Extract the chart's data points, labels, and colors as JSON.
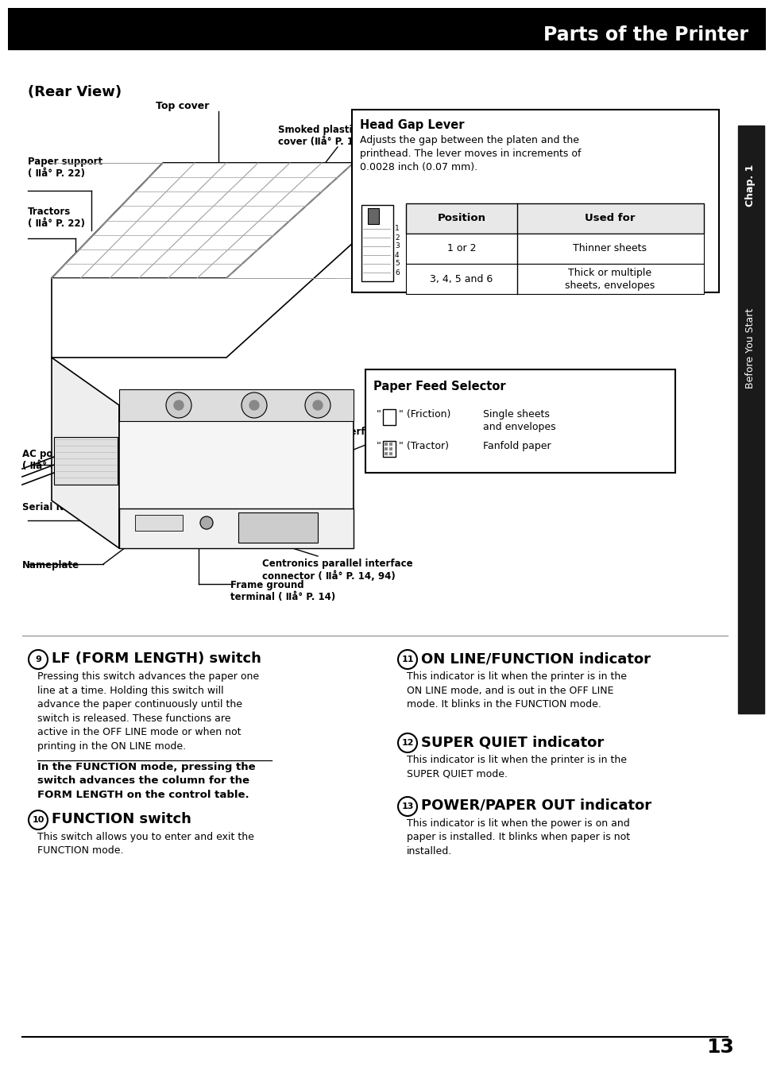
{
  "title": "Parts of the Printer",
  "header_bg": "#000000",
  "header_text_color": "#ffffff",
  "page_bg": "#ffffff",
  "page_number": "13",
  "rear_view_label": "(Rear View)",
  "sidebar_text": "Chap. 1",
  "sidebar_sub": "Before You Start",
  "head_gap_lever_title": "Head Gap Lever",
  "head_gap_lever_desc": "Adjusts the gap between the platen and the\nprinthead. The lever moves in increments of\n0.0028 inch (0.07 mm).",
  "table_headers": [
    "Position",
    "Used for"
  ],
  "table_row1": [
    "1 or 2",
    "Thinner sheets"
  ],
  "table_row2": [
    "3, 4, 5 and 6",
    "Thick or multiple\nsheets, envelopes"
  ],
  "paper_feed_title": "Paper Feed Selector",
  "paper_feed_row1_a": "\" ▯\" (Friction)",
  "paper_feed_row1_b": "Single sheets\nand envelopes",
  "paper_feed_row2_a": "\" ⊡\" (Tractor)",
  "paper_feed_row2_b": "Fanfold paper",
  "label_top_cover": "Top cover",
  "label_paper_support": "Paper support\n( Ⅱå° P. 22)",
  "label_tractors": "Tractors\n( Ⅱå° P. 22)",
  "label_ac": "AC power cord\n( Ⅱå° P. 14)",
  "label_serial_no": "Serial No. Label",
  "label_nameplate": "Nameplate",
  "label_smoked": "Smoked plastic\ncover (Ⅱå° P. 11)",
  "label_serial_iface": "Serial interface cover",
  "label_centronics": "Centronics parallel interface\nconnector ( Ⅱå° P. 14, 94)",
  "label_frame_ground": "Frame ground\nterminal ( Ⅱå° P. 14)",
  "sec9_circle": "9",
  "sec9_title": "LF (FORM LENGTH) switch",
  "sec9_body": "Pressing this switch advances the paper one\nline at a time. Holding this switch will\nadvance the paper continuously until the\nswitch is released. These functions are\nactive in the OFF LINE mode or when not\nprinting in the ON LINE mode.",
  "sec9_bold": "In the FUNCTION mode, pressing the\nswitch advances the column for the\nFORM LENGTH on the control table.",
  "sec10_circle": "10",
  "sec10_title": "FUNCTION switch",
  "sec10_body": "This switch allows you to enter and exit the\nFUNCTION mode.",
  "sec11_circle": "11",
  "sec11_title": "ON LINE/FUNCTION indicator",
  "sec11_body": "This indicator is lit when the printer is in the\nON LINE mode, and is out in the OFF LINE\nmode. It blinks in the FUNCTION mode.",
  "sec12_circle": "12",
  "sec12_title": "SUPER QUIET indicator",
  "sec12_body": "This indicator is lit when the printer is in the\nSUPER QUIET mode.",
  "sec13_circle": "13",
  "sec13_title": "POWER/PAPER OUT indicator",
  "sec13_body": "This indicator is lit when the power is on and\npaper is installed. It blinks when paper is not\ninstalled."
}
